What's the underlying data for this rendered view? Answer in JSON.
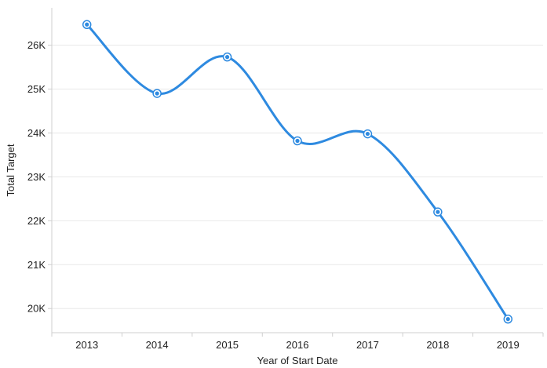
{
  "chart_data": {
    "type": "line",
    "title": "",
    "xlabel": "Year of Start Date",
    "ylabel": "Total Target",
    "categories": [
      "2013",
      "2014",
      "2015",
      "2016",
      "2017",
      "2018",
      "2019"
    ],
    "series": [
      {
        "values": [
          26470,
          24900,
          25730,
          23820,
          23980,
          22200,
          19760
        ]
      }
    ],
    "ylim": [
      19450,
      26850
    ],
    "yticks": [
      20000,
      21000,
      22000,
      23000,
      24000,
      25000,
      26000
    ],
    "ytick_labels": [
      "20K",
      "21K",
      "22K",
      "23K",
      "24K",
      "25K",
      "26K"
    ],
    "grid": "horizontal",
    "line_color": "#2e8ae0",
    "curve": "smooth",
    "markers": true
  }
}
